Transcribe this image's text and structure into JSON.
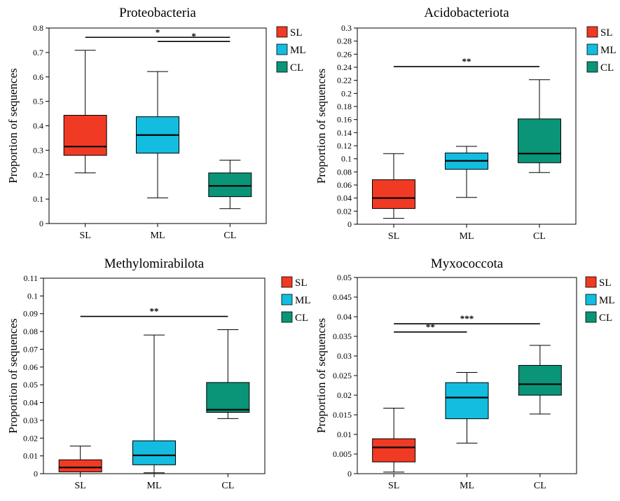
{
  "legend": [
    {
      "label": "SL",
      "color": "#f03a24"
    },
    {
      "label": "ML",
      "color": "#12bde0"
    },
    {
      "label": "CL",
      "color": "#0a9478"
    }
  ],
  "chart_data": [
    {
      "type": "box",
      "title": "Proteobacteria",
      "ylabel": "Proportion of sequences",
      "categories": [
        "SL",
        "ML",
        "CL"
      ],
      "ylim": [
        0,
        0.8
      ],
      "yticks": [
        "0",
        "0.1",
        "0.2",
        "0.3",
        "0.4",
        "0.5",
        "0.6",
        "0.7",
        "0.8"
      ],
      "boxes": [
        {
          "category": "SL",
          "min": 0.207,
          "q1": 0.279,
          "median": 0.315,
          "q3": 0.443,
          "max": 0.709
        },
        {
          "category": "ML",
          "min": 0.105,
          "q1": 0.288,
          "median": 0.362,
          "q3": 0.437,
          "max": 0.622
        },
        {
          "category": "CL",
          "min": 0.061,
          "q1": 0.11,
          "median": 0.154,
          "q3": 0.207,
          "max": 0.259
        }
      ],
      "significance": [
        {
          "from": "SL",
          "to": "CL",
          "y": 0.762,
          "label": "*"
        },
        {
          "from": "ML",
          "to": "CL",
          "y": 0.745,
          "label": "*"
        }
      ]
    },
    {
      "type": "box",
      "title": "Acidobacteriota",
      "ylabel": "Proportion of sequences",
      "categories": [
        "SL",
        "ML",
        "CL"
      ],
      "ylim": [
        0,
        0.3
      ],
      "yticks": [
        "0",
        "0.02",
        "0.04",
        "0.06",
        "0.08",
        "0.1",
        "0.12",
        "0.14",
        "0.16",
        "0.18",
        "0.2",
        "0.22",
        "0.24",
        "0.26",
        "0.28",
        "0.3"
      ],
      "boxes": [
        {
          "category": "SL",
          "min": 0.009,
          "q1": 0.024,
          "median": 0.04,
          "q3": 0.068,
          "max": 0.108
        },
        {
          "category": "ML",
          "min": 0.041,
          "q1": 0.084,
          "median": 0.097,
          "q3": 0.109,
          "max": 0.119
        },
        {
          "category": "CL",
          "min": 0.079,
          "q1": 0.094,
          "median": 0.108,
          "q3": 0.161,
          "max": 0.221
        }
      ],
      "significance": [
        {
          "from": "SL",
          "to": "CL",
          "y": 0.241,
          "label": "**"
        }
      ]
    },
    {
      "type": "box",
      "title": "Methylomirabilota",
      "ylabel": "Proportion of sequences",
      "categories": [
        "SL",
        "ML",
        "CL"
      ],
      "ylim": [
        0,
        0.11
      ],
      "yticks": [
        "0",
        "0.01",
        "0.02",
        "0.03",
        "0.04",
        "0.05",
        "0.06",
        "0.07",
        "0.08",
        "0.09",
        "0.1",
        "0.11"
      ],
      "boxes": [
        {
          "category": "SL",
          "min": 0.0,
          "q1": 0.001,
          "median": 0.0035,
          "q3": 0.0078,
          "max": 0.0155
        },
        {
          "category": "ML",
          "min": 0.0005,
          "q1": 0.005,
          "median": 0.0103,
          "q3": 0.0185,
          "max": 0.078
        },
        {
          "category": "CL",
          "min": 0.031,
          "q1": 0.0345,
          "median": 0.036,
          "q3": 0.0513,
          "max": 0.081
        }
      ],
      "significance": [
        {
          "from": "SL",
          "to": "CL",
          "y": 0.0885,
          "label": "**"
        }
      ]
    },
    {
      "type": "box",
      "title": "Myxococcota",
      "ylabel": "Proportion of sequences",
      "categories": [
        "SL",
        "ML",
        "CL"
      ],
      "ylim": [
        0,
        0.05
      ],
      "yticks": [
        "0",
        "0.005",
        "0.01",
        "0.015",
        "0.02",
        "0.025",
        "0.03",
        "0.035",
        "0.04",
        "0.045",
        "0.05"
      ],
      "boxes": [
        {
          "category": "SL",
          "min": 0.0004,
          "q1": 0.003,
          "median": 0.0067,
          "q3": 0.0089,
          "max": 0.0167
        },
        {
          "category": "ML",
          "min": 0.0078,
          "q1": 0.014,
          "median": 0.0194,
          "q3": 0.0232,
          "max": 0.0258
        },
        {
          "category": "CL",
          "min": 0.0152,
          "q1": 0.02,
          "median": 0.0228,
          "q3": 0.0276,
          "max": 0.0327
        }
      ],
      "significance": [
        {
          "from": "SL",
          "to": "ML",
          "y": 0.0361,
          "label": "**"
        },
        {
          "from": "SL",
          "to": "CL",
          "y": 0.0382,
          "label": "***"
        }
      ]
    }
  ]
}
